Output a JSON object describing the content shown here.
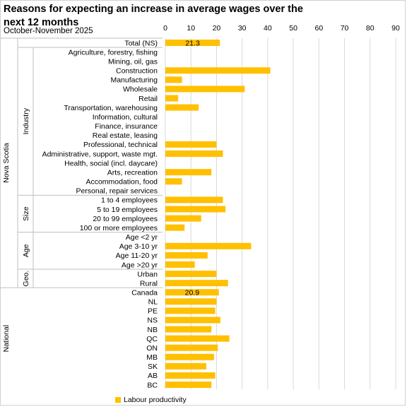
{
  "chart_data": {
    "type": "bar",
    "orientation": "horizontal",
    "title": "Reasons for expecting an increase in average wages over the next 12 months",
    "subtitle": "October-November 2025",
    "xlim": [
      0,
      90
    ],
    "x_ticks": [
      0,
      10,
      20,
      30,
      40,
      50,
      60,
      70,
      80,
      90
    ],
    "x_axis_position": "top",
    "grid": true,
    "legend_position": "bottom",
    "bar_color": "#FFC000",
    "series": [
      {
        "name": "Labour productivity"
      }
    ],
    "categories": [
      "Total (NS)",
      "Agriculture, forestry, fishing",
      "Mining, oil, gas",
      "Construction",
      "Manufacturing",
      "Wholesale",
      "Retail",
      "Transportation, warehousing",
      "Information, cultural",
      "Finance, insurance",
      "Real estate, leasing",
      "Professional, technical",
      "Administrative, support, waste mgt.",
      "Health, social (incl. daycare)",
      "Arts, recreation",
      "Accommodation, food",
      "Personal, repair services",
      "1 to 4 employees",
      "5 to 19 employees",
      "20 to 99 employees",
      "100 or more employees",
      "Age <2 yr",
      "Age 3-10 yr",
      "Age 11-20 yr",
      "Age >20 yr",
      "Urban",
      "Rural",
      "Canada",
      "NL",
      "PE",
      "NS",
      "NB",
      "QC",
      "ON",
      "MB",
      "SK",
      "AB",
      "BC"
    ],
    "values": [
      21.3,
      null,
      null,
      41,
      6.5,
      31,
      5,
      13,
      null,
      null,
      null,
      20,
      22.5,
      null,
      18,
      6.5,
      null,
      22.5,
      23.5,
      14,
      7.5,
      null,
      33.5,
      16.5,
      11.5,
      20,
      24.5,
      20.9,
      20,
      19.5,
      21.5,
      18,
      25,
      20.5,
      19,
      16,
      19.5,
      18
    ],
    "data_labels": {
      "0": "21.3",
      "27": "20.9"
    },
    "groups": [
      {
        "outer": "Nova Scotia",
        "inner": "Industry",
        "start": 1,
        "end": 16
      },
      {
        "outer": "Nova Scotia",
        "inner": "Size",
        "start": 17,
        "end": 20
      },
      {
        "outer": "Nova Scotia",
        "inner": "Age",
        "start": 21,
        "end": 24
      },
      {
        "outer": "Nova Scotia",
        "inner": "Geo.",
        "start": 25,
        "end": 26
      },
      {
        "outer": "National",
        "inner": "",
        "start": 27,
        "end": 37
      }
    ],
    "outer_groups": [
      "Nova Scotia",
      "National"
    ]
  }
}
